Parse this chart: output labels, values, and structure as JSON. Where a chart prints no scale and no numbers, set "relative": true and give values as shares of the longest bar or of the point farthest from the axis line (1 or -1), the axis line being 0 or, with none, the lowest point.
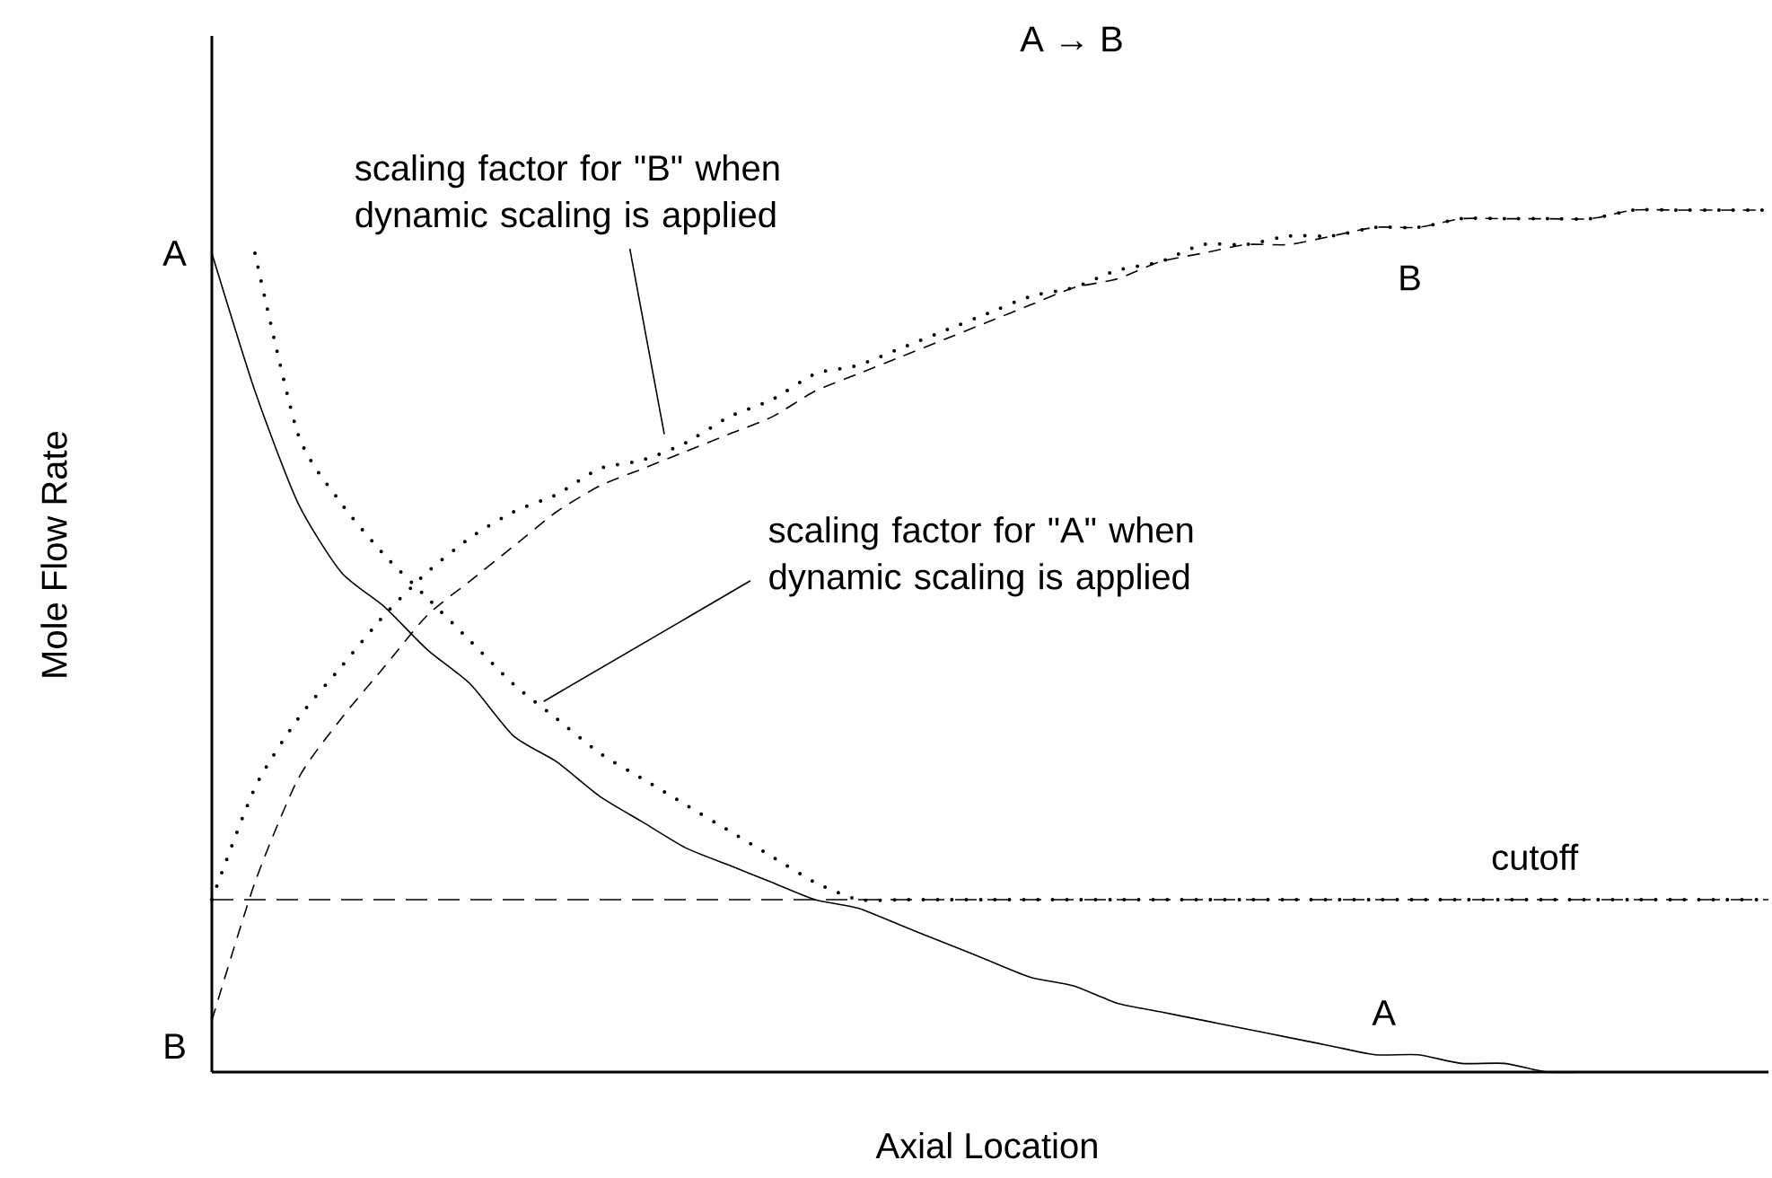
{
  "chart_data": {
    "type": "line",
    "title": "A → B",
    "xlabel": "Axial Location",
    "ylabel": "Mole Flow Rate",
    "relative": true,
    "categories": [
      null,
      null,
      null,
      null,
      null,
      null,
      null,
      null,
      null,
      null,
      null,
      null,
      null,
      null,
      null,
      null,
      null,
      null,
      null,
      null,
      null,
      null,
      null,
      null,
      null,
      null,
      null,
      null,
      null,
      null,
      null,
      null,
      null,
      null,
      null,
      null,
      null
    ],
    "series": [
      {
        "name": "A",
        "color": "#000000",
        "line_style": "solid",
        "values": [
          0.95,
          0.79,
          0.66,
          0.58,
          0.54,
          0.49,
          0.45,
          0.39,
          0.36,
          0.32,
          0.29,
          0.26,
          0.24,
          0.22,
          0.2,
          0.19,
          0.17,
          0.15,
          0.13,
          0.11,
          0.1,
          0.08,
          0.07,
          0.06,
          0.05,
          0.04,
          0.03,
          0.02,
          0.02,
          0.01,
          0.01,
          0.0,
          0.0,
          0.0,
          0.0,
          0.0,
          0.0
        ]
      },
      {
        "name": "B",
        "color": "#000000",
        "line_style": "dashed",
        "values": [
          0.06,
          0.22,
          0.34,
          0.41,
          0.47,
          0.53,
          0.57,
          0.61,
          0.65,
          0.68,
          0.7,
          0.72,
          0.74,
          0.76,
          0.79,
          0.81,
          0.83,
          0.85,
          0.87,
          0.89,
          0.91,
          0.92,
          0.94,
          0.95,
          0.96,
          0.96,
          0.97,
          0.98,
          0.98,
          0.99,
          0.99,
          0.99,
          0.99,
          1.0,
          1.0,
          1.0,
          1.0
        ]
      },
      {
        "color": "#000000",
        "line_style": "dotted",
        "values": [
          0.2,
          0.33,
          0.41,
          0.47,
          0.53,
          0.58,
          0.62,
          0.65,
          0.67,
          0.7,
          0.71,
          0.73,
          0.76,
          0.78,
          0.81,
          0.82,
          0.84,
          0.86,
          0.88,
          0.9,
          0.91,
          0.93,
          0.94,
          0.96,
          0.96,
          0.97,
          0.97,
          0.98,
          0.98,
          0.99,
          0.99,
          0.99,
          0.99,
          1.0,
          1.0,
          1.0,
          1.0
        ]
      },
      {
        "color": "#000000",
        "line_style": "dotted",
        "values": [
          null,
          0.95,
          0.74,
          0.66,
          0.6,
          0.55,
          0.5,
          0.45,
          0.41,
          0.37,
          0.34,
          0.31,
          0.28,
          0.25,
          0.22,
          0.2,
          0.2,
          0.2,
          0.2,
          0.2,
          0.2,
          0.2,
          0.2,
          0.2,
          0.2,
          0.2,
          0.2,
          0.2,
          0.2,
          0.2,
          0.2,
          0.2,
          0.2,
          0.2,
          0.2,
          0.2,
          0.2
        ]
      }
    ],
    "ref_lines": [
      {
        "axis": "y",
        "value": 0.2,
        "label": "cutoff",
        "line_style": "dashed",
        "color": "#000000"
      }
    ],
    "annotations": [
      "A",
      "B",
      "scaling factor for \"B\" when dynamic scaling is applied",
      "scaling factor for \"A\" when dynamic scaling is applied"
    ]
  }
}
